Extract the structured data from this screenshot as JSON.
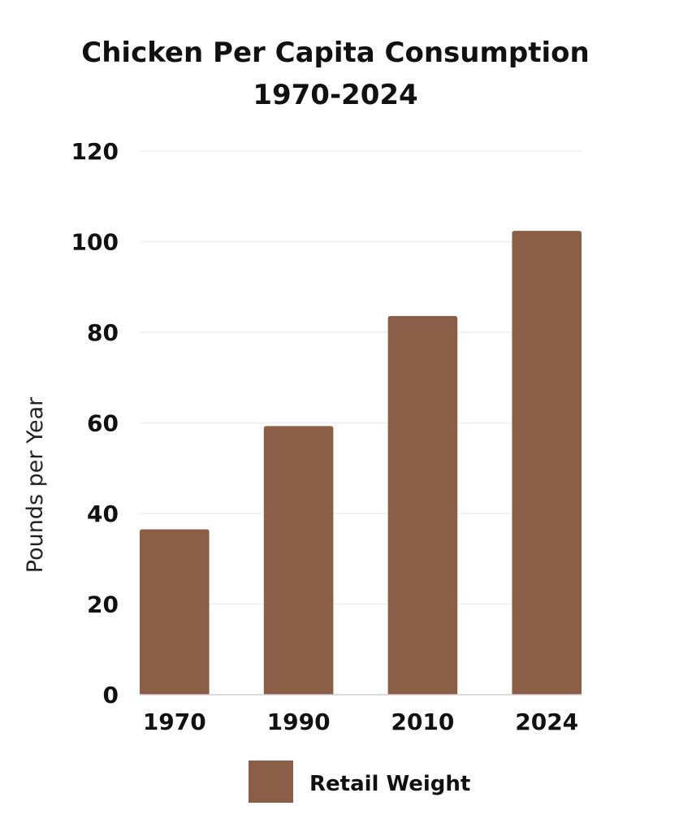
{
  "chart_data": {
    "type": "bar",
    "title": "Chicken Per Capita Consumption",
    "subtitle": "1970-2024",
    "xlabel": "",
    "ylabel": "Pounds per Year",
    "categories": [
      "1970",
      "1990",
      "2010",
      "2024"
    ],
    "series": [
      {
        "name": "Retail Weight",
        "values": [
          36.5,
          59.3,
          83.6,
          102.4
        ],
        "color": "#8B5E47"
      }
    ],
    "ylim": [
      0,
      120
    ],
    "yticks": [
      0,
      20,
      40,
      60,
      80,
      100,
      120
    ],
    "grid": true,
    "legend_position": "bottom"
  }
}
